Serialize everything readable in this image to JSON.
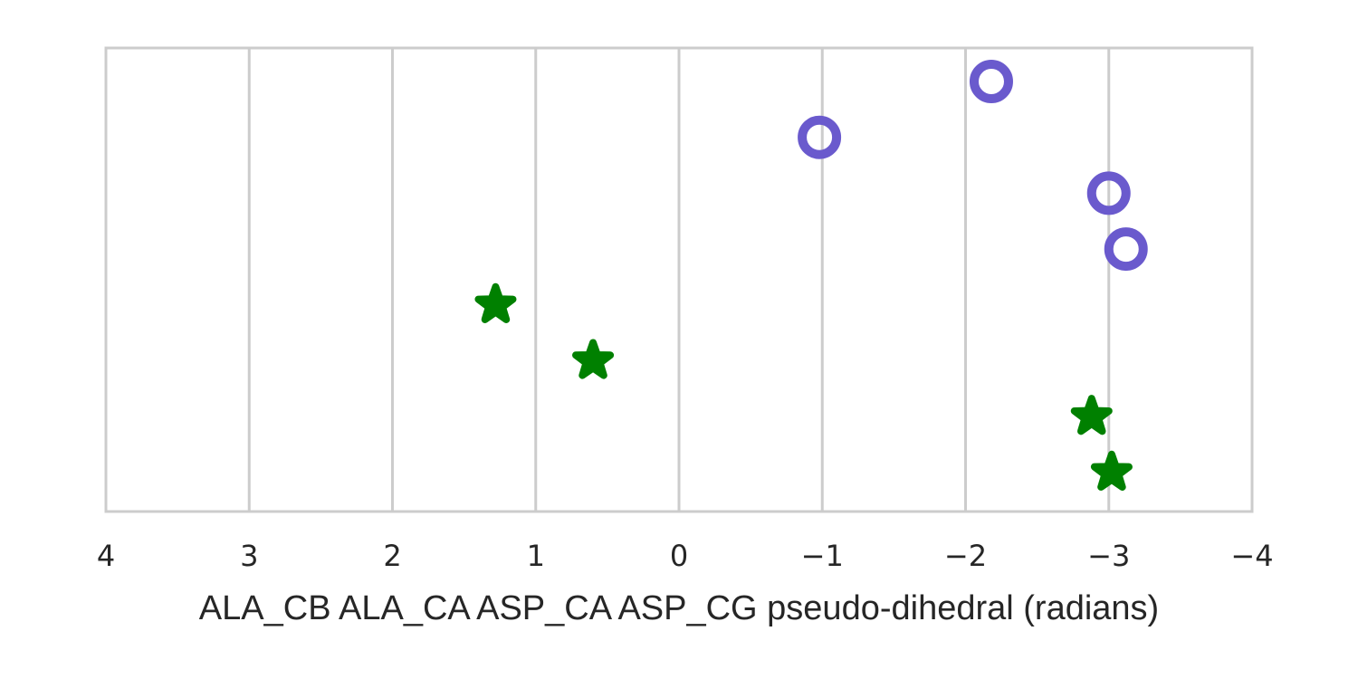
{
  "chart_data": {
    "type": "scatter",
    "xlabel": "ALA_CB ALA_CA ASP_CA ASP_CG pseudo-dihedral (radians)",
    "xlim": [
      4,
      -4
    ],
    "x_ticks": [
      4,
      3,
      2,
      1,
      0,
      -1,
      -2,
      -3,
      -4
    ],
    "x_tick_labels": [
      "4",
      "3",
      "2",
      "1",
      "0",
      "−1",
      "−2",
      "−3",
      "−4"
    ],
    "y_axis_visible": false,
    "grid": "vertical",
    "series": [
      {
        "marker": "circle-open",
        "color": "#6a5acd",
        "points": [
          {
            "x": -2.18,
            "y": 8
          },
          {
            "x": -0.98,
            "y": 7
          },
          {
            "x": -3.0,
            "y": 6
          },
          {
            "x": -3.12,
            "y": 5
          }
        ]
      },
      {
        "marker": "star",
        "color": "#008000",
        "points": [
          {
            "x": 1.28,
            "y": 4
          },
          {
            "x": 0.6,
            "y": 3
          },
          {
            "x": -2.88,
            "y": 2
          },
          {
            "x": -3.02,
            "y": 1
          }
        ]
      }
    ],
    "ylim": [
      0.3,
      8.6
    ]
  }
}
